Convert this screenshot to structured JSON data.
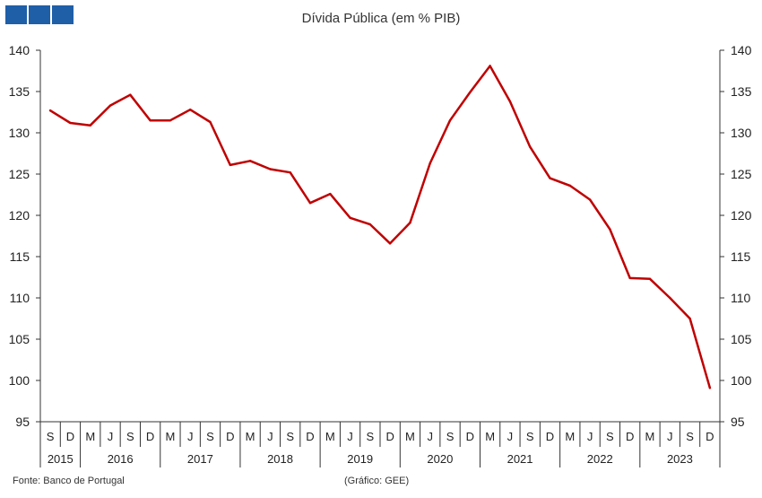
{
  "header": {
    "title": "Dívida Pública (em % PIB)",
    "logo_color": "#1f5fa8"
  },
  "footer": {
    "source": "Fonte: Banco de Portugal",
    "credit": "(Gráfico: GEE)"
  },
  "chart_data": {
    "type": "line",
    "title": "Dívida Pública (em % PIB)",
    "xlabel": "",
    "ylabel": "",
    "ylim": [
      95,
      140
    ],
    "yticks": [
      95,
      100,
      105,
      110,
      115,
      120,
      125,
      130,
      135,
      140
    ],
    "line_color": "#c00000",
    "categories": [
      "S",
      "D",
      "M",
      "J",
      "S",
      "D",
      "M",
      "J",
      "S",
      "D",
      "M",
      "J",
      "S",
      "D",
      "M",
      "J",
      "S",
      "D",
      "M",
      "J",
      "S",
      "D",
      "M",
      "J",
      "S",
      "D",
      "M",
      "J",
      "S",
      "D",
      "M",
      "J",
      "S",
      "D"
    ],
    "years": [
      {
        "label": "2015",
        "start": 0,
        "end": 1
      },
      {
        "label": "2016",
        "start": 2,
        "end": 5
      },
      {
        "label": "2017",
        "start": 6,
        "end": 9
      },
      {
        "label": "2018",
        "start": 10,
        "end": 13
      },
      {
        "label": "2019",
        "start": 14,
        "end": 17
      },
      {
        "label": "2020",
        "start": 18,
        "end": 21
      },
      {
        "label": "2021",
        "start": 22,
        "end": 25
      },
      {
        "label": "2022",
        "start": 26,
        "end": 29
      },
      {
        "label": "2023",
        "start": 30,
        "end": 33
      }
    ],
    "series": [
      {
        "values": [
          132.7,
          131.2,
          130.9,
          133.3,
          134.6,
          131.5,
          131.5,
          132.8,
          131.3,
          126.1,
          126.6,
          125.6,
          125.2,
          121.5,
          122.6,
          119.7,
          118.9,
          116.6,
          119.1,
          126.3,
          131.5,
          134.9,
          138.1,
          133.8,
          128.3,
          124.5,
          123.6,
          121.9,
          118.3,
          112.4,
          112.3,
          110.0,
          107.5,
          99.1
        ]
      }
    ]
  }
}
